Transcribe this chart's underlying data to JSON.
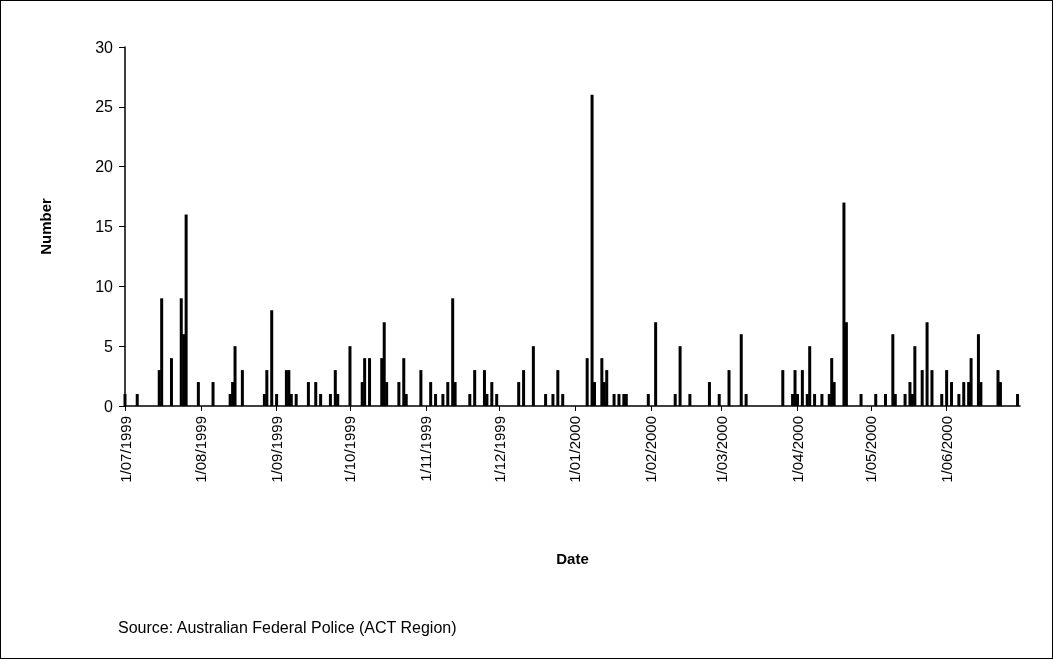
{
  "chart_data": {
    "type": "bar",
    "xlabel": "Date",
    "ylabel": "Number",
    "color": "#000000",
    "x": [
      "1999-07-01",
      "1999-07-06",
      "1999-07-15",
      "1999-07-16",
      "1999-07-20",
      "1999-07-24",
      "1999-07-25",
      "1999-07-26",
      "1999-07-31",
      "1999-08-06",
      "1999-08-13",
      "1999-08-14",
      "1999-08-15",
      "1999-08-18",
      "1999-08-27",
      "1999-08-28",
      "1999-08-30",
      "1999-09-01",
      "1999-09-05",
      "1999-09-06",
      "1999-09-07",
      "1999-09-09",
      "1999-09-14",
      "1999-09-17",
      "1999-09-19",
      "1999-09-23",
      "1999-09-25",
      "1999-09-26",
      "1999-10-01",
      "1999-10-06",
      "1999-10-07",
      "1999-10-09",
      "1999-10-14",
      "1999-10-15",
      "1999-10-16",
      "1999-10-21",
      "1999-10-23",
      "1999-10-24",
      "1999-10-30",
      "1999-11-03",
      "1999-11-05",
      "1999-11-08",
      "1999-11-10",
      "1999-11-12",
      "1999-11-13",
      "1999-11-19",
      "1999-11-21",
      "1999-11-25",
      "1999-11-26",
      "1999-11-28",
      "1999-11-30",
      "1999-12-09",
      "1999-12-11",
      "1999-12-15",
      "1999-12-20",
      "1999-12-23",
      "1999-12-25",
      "1999-12-27",
      "2000-01-06",
      "2000-01-08",
      "2000-01-09",
      "2000-01-12",
      "2000-01-13",
      "2000-01-14",
      "2000-01-17",
      "2000-01-19",
      "2000-01-21",
      "2000-01-22",
      "2000-01-31",
      "2000-02-03",
      "2000-02-11",
      "2000-02-13",
      "2000-02-17",
      "2000-02-25",
      "2000-02-29",
      "2000-03-04",
      "2000-03-09",
      "2000-03-11",
      "2000-03-26",
      "2000-03-30",
      "2000-03-31",
      "2000-04-01",
      "2000-04-03",
      "2000-04-05",
      "2000-04-06",
      "2000-04-08",
      "2000-04-11",
      "2000-04-14",
      "2000-04-15",
      "2000-04-16",
      "2000-04-20",
      "2000-04-21",
      "2000-04-27",
      "2000-05-03",
      "2000-05-07",
      "2000-05-10",
      "2000-05-11",
      "2000-05-15",
      "2000-05-17",
      "2000-05-18",
      "2000-05-19",
      "2000-05-22",
      "2000-05-24",
      "2000-05-26",
      "2000-05-30",
      "2000-06-01",
      "2000-06-03",
      "2000-06-06",
      "2000-06-08",
      "2000-06-10",
      "2000-06-11",
      "2000-06-14",
      "2000-06-15",
      "2000-06-22",
      "2000-06-23",
      "2000-06-30"
    ],
    "values": [
      1,
      1,
      3,
      9,
      4,
      9,
      6,
      16,
      2,
      2,
      1,
      2,
      5,
      3,
      1,
      3,
      8,
      1,
      3,
      3,
      1,
      1,
      2,
      2,
      1,
      1,
      3,
      1,
      5,
      2,
      4,
      4,
      4,
      7,
      2,
      2,
      4,
      1,
      3,
      2,
      1,
      1,
      2,
      9,
      2,
      1,
      3,
      3,
      1,
      2,
      1,
      2,
      3,
      5,
      1,
      1,
      3,
      1,
      4,
      26,
      2,
      4,
      2,
      3,
      1,
      1,
      1,
      1,
      1,
      7,
      1,
      5,
      1,
      2,
      1,
      3,
      6,
      1,
      3,
      1,
      3,
      1,
      3,
      1,
      5,
      1,
      1,
      1,
      4,
      2,
      17,
      7,
      1,
      1,
      1,
      6,
      1,
      1,
      2,
      1,
      5,
      3,
      7,
      3,
      1,
      3,
      2,
      1,
      2,
      2,
      4,
      6,
      2,
      3,
      2,
      1
    ],
    "xlim": [
      "1999-07-01",
      "2000-07-01"
    ],
    "xticks": [
      {
        "value": "1999-07-01",
        "label": "1/07/1999"
      },
      {
        "value": "1999-08-01",
        "label": "1/08/1999"
      },
      {
        "value": "1999-09-01",
        "label": "1/09/1999"
      },
      {
        "value": "1999-10-01",
        "label": "1/10/1999"
      },
      {
        "value": "1999-11-01",
        "label": "1/11/1999"
      },
      {
        "value": "1999-12-01",
        "label": "1/12/1999"
      },
      {
        "value": "2000-01-01",
        "label": "1/01/2000"
      },
      {
        "value": "2000-02-01",
        "label": "1/02/2000"
      },
      {
        "value": "2000-03-01",
        "label": "1/03/2000"
      },
      {
        "value": "2000-04-01",
        "label": "1/04/2000"
      },
      {
        "value": "2000-05-01",
        "label": "1/05/2000"
      },
      {
        "value": "2000-06-01",
        "label": "1/06/2000"
      }
    ],
    "ylim": [
      0,
      30
    ],
    "yticks": [
      0,
      5,
      10,
      15,
      20,
      25,
      30
    ],
    "grid": false,
    "annotations": [
      "Source: Australian Federal Police (ACT Region)"
    ]
  }
}
